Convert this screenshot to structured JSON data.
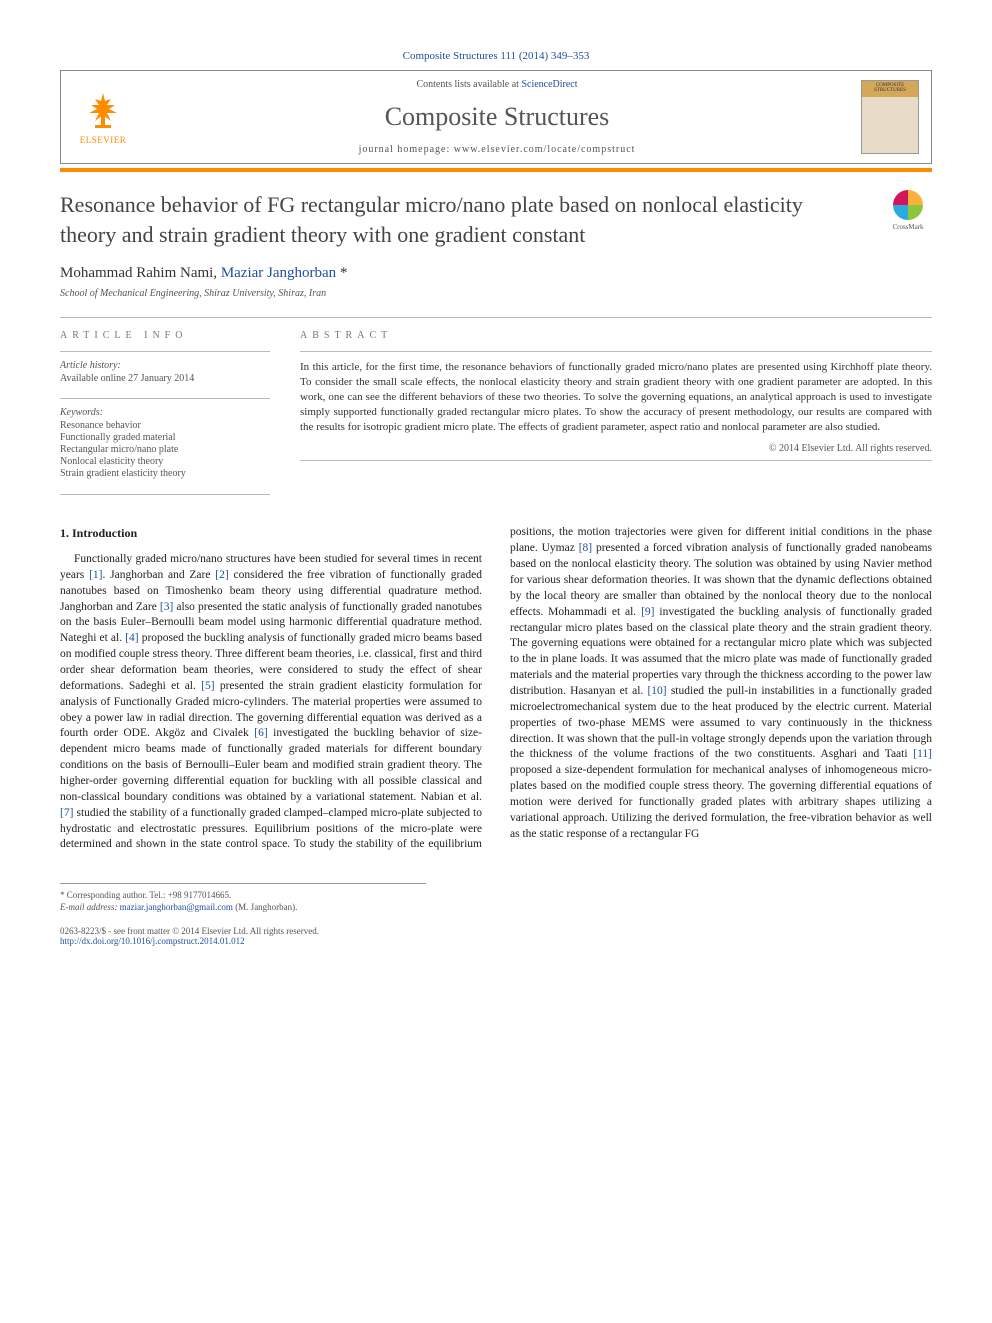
{
  "citation": {
    "text": "Composite Structures 111 (2014) 349–353",
    "color": "#2050a0"
  },
  "header": {
    "contents_prefix": "Contents lists available at ",
    "contents_link": "ScienceDirect",
    "journal": "Composite Structures",
    "homepage_prefix": "journal homepage: ",
    "homepage_url": "www.elsevier.com/locate/compstruct",
    "publisher_name": "ELSEVIER",
    "cover_label": "COMPOSITE STRUCTURES"
  },
  "colors": {
    "accent_bar": "#ff8c00",
    "link": "#2050a0",
    "text_body": "#222222",
    "text_muted": "#555555",
    "border": "#888888"
  },
  "crossmark": {
    "label": "CrossMark",
    "q_colors": [
      "#d4145a",
      "#fbb03b",
      "#29abe2",
      "#8cc63f"
    ]
  },
  "title": "Resonance behavior of FG rectangular micro/nano plate based on nonlocal elasticity theory and strain gradient theory with one gradient constant",
  "authors_plain": "Mohammad Rahim Nami, ",
  "authors_linked": "Maziar Janghorban",
  "authors_marker": " *",
  "affiliation": "School of Mechanical Engineering, Shiraz University, Shiraz, Iran",
  "article_info": {
    "heading": "ARTICLE INFO",
    "history_label": "Article history:",
    "history_text": "Available online 27 January 2014",
    "keywords_label": "Keywords:",
    "keywords": [
      "Resonance behavior",
      "Functionally graded material",
      "Rectangular micro/nano plate",
      "Nonlocal elasticity theory",
      "Strain gradient elasticity theory"
    ]
  },
  "abstract": {
    "heading": "ABSTRACT",
    "text": "In this article, for the first time, the resonance behaviors of functionally graded micro/nano plates are presented using Kirchhoff plate theory. To consider the small scale effects, the nonlocal elasticity theory and strain gradient theory with one gradient parameter are adopted. In this work, one can see the different behaviors of these two theories. To solve the governing equations, an analytical approach is used to investigate simply supported functionally graded rectangular micro plates. To show the accuracy of present methodology, our results are compared with the results for isotropic gradient micro plate. The effects of gradient parameter, aspect ratio and nonlocal parameter are also studied.",
    "copyright": "© 2014 Elsevier Ltd. All rights reserved."
  },
  "sections": {
    "intro_heading": "1. Introduction",
    "intro_body": "Functionally graded micro/nano structures have been studied for several times in recent years [1]. Janghorban and Zare [2] considered the free vibration of functionally graded nanotubes based on Timoshenko beam theory using differential quadrature method. Janghorban and Zare [3] also presented the static analysis of functionally graded nanotubes on the basis Euler–Bernoulli beam model using harmonic differential quadrature method. Nateghi et al. [4] proposed the buckling analysis of functionally graded micro beams based on modified couple stress theory. Three different beam theories, i.e. classical, first and third order shear deformation beam theories, were considered to study the effect of shear deformations. Sadeghi et al. [5] presented the strain gradient elasticity formulation for analysis of Functionally Graded micro-cylinders. The material properties were assumed to obey a power law in radial direction. The governing differential equation was derived as a fourth order ODE. Akgöz and Civalek [6] investigated the buckling behavior of size-dependent micro beams made of functionally graded materials for different boundary conditions on the basis of Bernoulli–Euler beam and modified strain gradient theory. The higher-order governing differential equation for buckling with all possible classical and non-classical boundary conditions was obtained by a variational statement. Nabian et al. [7] studied the stability of a functionally graded clamped–clamped micro-plate subjected to hydrostatic and electrostatic pressures. Equilibrium positions of the micro-plate were determined and shown in the state control space. To study the stability of the equilibrium positions, the motion trajectories were given for different initial conditions in the phase plane. Uymaz [8] presented a forced vibration analysis of functionally graded nanobeams based on the nonlocal elasticity theory. The solution was obtained by using Navier method for various shear deformation theories. It was shown that the dynamic deflections obtained by the local theory are smaller than obtained by the nonlocal theory due to the nonlocal effects. Mohammadi et al. [9] investigated the buckling analysis of functionally graded rectangular micro plates based on the classical plate theory and the strain gradient theory. The governing equations were obtained for a rectangular micro plate which was subjected to the in plane loads. It was assumed that the micro plate was made of functionally graded materials and the material properties vary through the thickness according to the power law distribution. Hasanyan et al. [10] studied the pull-in instabilities in a functionally graded microelectromechanical system due to the heat produced by the electric current. Material properties of two-phase MEMS were assumed to vary continuously in the thickness direction. It was shown that the pull-in voltage strongly depends upon the variation through the thickness of the volume fractions of the two constituents. Asghari and Taati [11] proposed a size-dependent formulation for mechanical analyses of inhomogeneous micro-plates based on the modified couple stress theory. The governing differential equations of motion were derived for functionally graded plates with arbitrary shapes utilizing a variational approach. Utilizing the derived formulation, the free-vibration behavior as well as the static response of a rectangular FG"
  },
  "footnotes": {
    "corresponding": "* Corresponding author. Tel.: +98 9177014665.",
    "email_label": "E-mail address: ",
    "email": "maziar.janghorban@gmail.com",
    "email_suffix": " (M. Janghorban)."
  },
  "bottom": {
    "issn_line": "0263-8223/$ - see front matter © 2014 Elsevier Ltd. All rights reserved.",
    "doi": "http://dx.doi.org/10.1016/j.compstruct.2014.01.012"
  }
}
